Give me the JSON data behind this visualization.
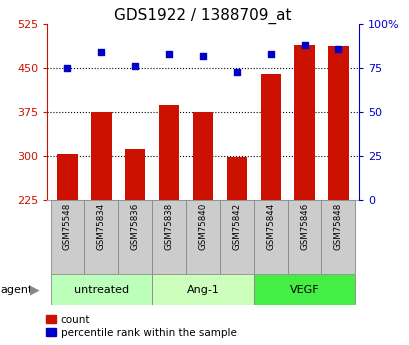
{
  "title": "GDS1922 / 1388709_at",
  "samples": [
    "GSM75548",
    "GSM75834",
    "GSM75836",
    "GSM75838",
    "GSM75840",
    "GSM75842",
    "GSM75844",
    "GSM75846",
    "GSM75848"
  ],
  "count_values": [
    304,
    376,
    312,
    388,
    375,
    298,
    440,
    490,
    487
  ],
  "percentile_values": [
    75,
    84,
    76,
    83,
    82,
    73,
    83,
    88,
    86
  ],
  "bar_bottom": 225,
  "ylim_left": [
    225,
    525
  ],
  "ylim_right": [
    0,
    100
  ],
  "yticks_left": [
    225,
    300,
    375,
    450,
    525
  ],
  "yticks_right": [
    0,
    25,
    50,
    75,
    100
  ],
  "grid_yticks": [
    300,
    375,
    450
  ],
  "groups": [
    {
      "label": "untreated",
      "indices": [
        0,
        1,
        2
      ],
      "color": "#bbffbb"
    },
    {
      "label": "Ang-1",
      "indices": [
        3,
        4,
        5
      ],
      "color": "#ccffbb"
    },
    {
      "label": "VEGF",
      "indices": [
        6,
        7,
        8
      ],
      "color": "#44ee44"
    }
  ],
  "bar_color": "#cc1100",
  "dot_color": "#0000cc",
  "left_axis_color": "#cc1100",
  "right_axis_color": "#0000cc",
  "legend_count_label": "count",
  "legend_percentile_label": "percentile rank within the sample",
  "sample_box_color": "#cccccc",
  "sample_box_edge": "#888888",
  "group_box_edge": "#888888"
}
